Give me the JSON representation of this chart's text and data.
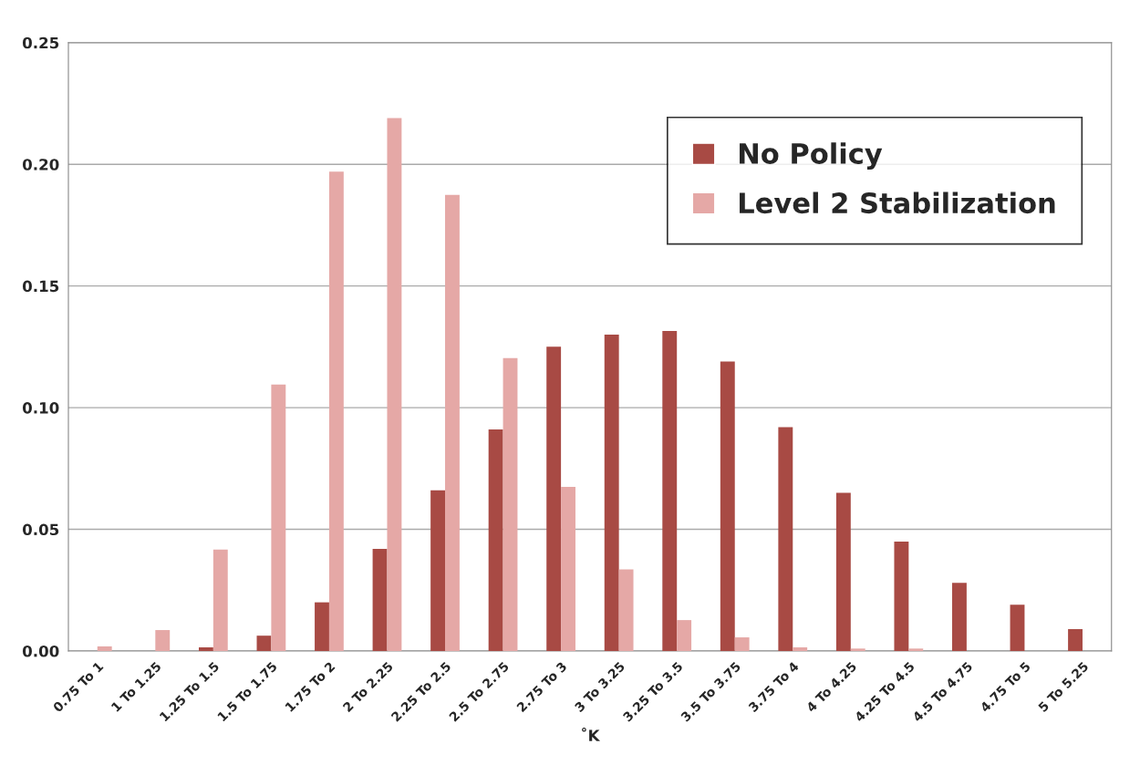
{
  "chart_data": {
    "type": "bar",
    "xlabel": "˚K",
    "categories": [
      "0.75 To 1",
      "1 To 1.25",
      "1.25 To 1.5",
      "1.5 To 1.75",
      "1.75 To 2",
      "2 To 2.25",
      "2.25 To 2.5",
      "2.5 To 2.75",
      "2.75 To 3",
      "3 To 3.25",
      "3.25 To 3.5",
      "3.5 To 3.75",
      "3.75 To 4",
      "4 To 4.25",
      "4.25 To 4.5",
      "4.5 To 4.75",
      "4.75 To 5",
      "5 To 5.25"
    ],
    "series": [
      {
        "name": "No Policy",
        "color": "#a84a44",
        "values": [
          0,
          0,
          0.0015,
          0.0063,
          0.02,
          0.042,
          0.066,
          0.091,
          0.125,
          0.13,
          0.1315,
          0.119,
          0.092,
          0.065,
          0.045,
          0.028,
          0.019,
          0.009
        ]
      },
      {
        "name": "Level 2 Stabilization",
        "color": "#e5a8a6",
        "values": [
          0.0019,
          0.0086,
          0.0417,
          0.1095,
          0.197,
          0.219,
          0.1874,
          0.1204,
          0.0674,
          0.0335,
          0.0127,
          0.0056,
          0.0015,
          0.001,
          0.001,
          0,
          0,
          0
        ]
      }
    ],
    "ylim": [
      0,
      0.25
    ],
    "yticks": [
      {
        "value": 0,
        "label": "0.00"
      },
      {
        "value": 0.05,
        "label": "0.05"
      },
      {
        "value": 0.1,
        "label": "0.10"
      },
      {
        "value": 0.15,
        "label": "0.15"
      },
      {
        "value": 0.2,
        "label": "0.20"
      },
      {
        "value": 0.25,
        "label": "0.25"
      }
    ],
    "grid": "y",
    "legend": "top right"
  }
}
